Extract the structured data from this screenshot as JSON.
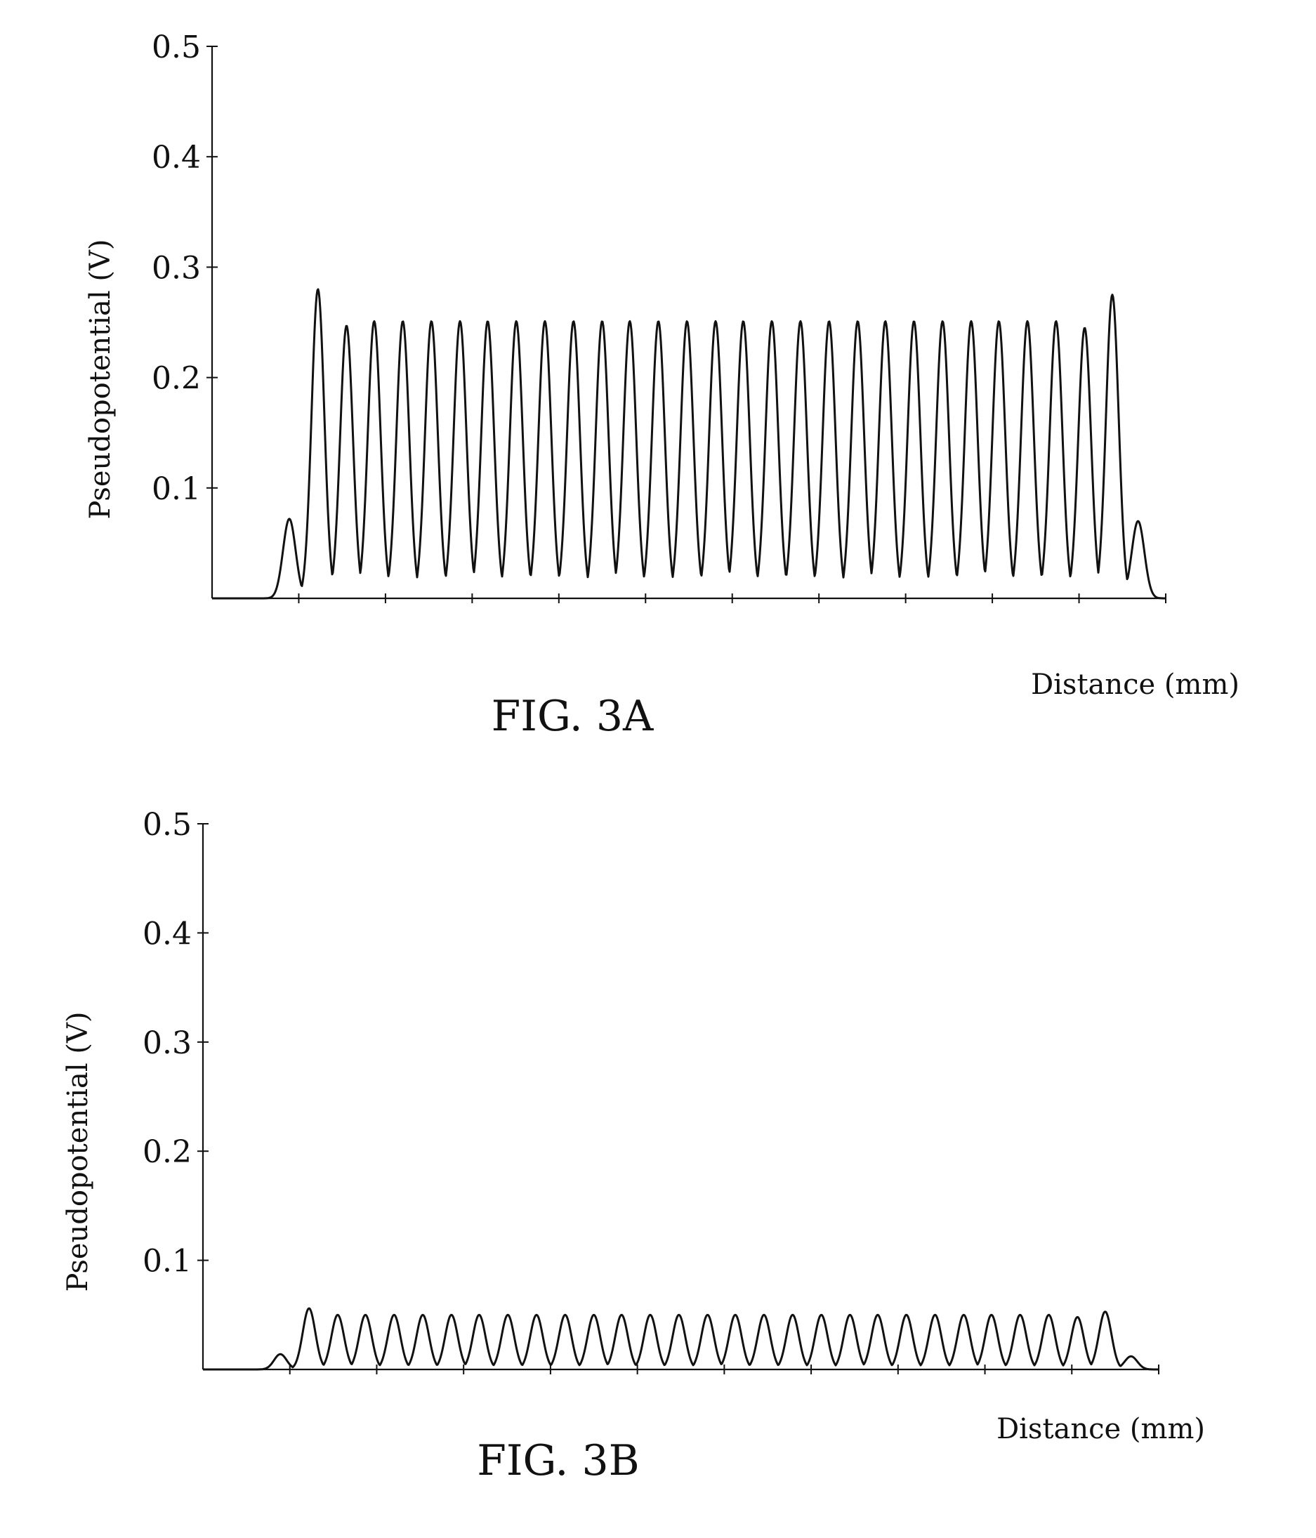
{
  "chart_data": [
    {
      "type": "line",
      "figure_label": "FIG. 3A",
      "title": "",
      "xlabel": "Distance (mm)",
      "ylabel": "Pseudopotential (V)",
      "ylim": [
        0,
        0.5
      ],
      "y_ticks": [
        "0.1",
        "0.2",
        "0.3",
        "0.4",
        "0.5"
      ],
      "x_tick_labels": [],
      "grid": false,
      "peak_count": 31,
      "peaks": [
        {
          "x_fraction": 0.081,
          "y": 0.072
        },
        {
          "x_fraction": 0.111,
          "y": 0.28
        },
        {
          "x_fraction": 0.141,
          "y": 0.247
        },
        {
          "x_fraction": 0.17,
          "y": 0.251
        },
        {
          "x_fraction": 0.2,
          "y": 0.251
        },
        {
          "x_fraction": 0.23,
          "y": 0.251
        },
        {
          "x_fraction": 0.26,
          "y": 0.251
        },
        {
          "x_fraction": 0.289,
          "y": 0.251
        },
        {
          "x_fraction": 0.319,
          "y": 0.251
        },
        {
          "x_fraction": 0.349,
          "y": 0.251
        },
        {
          "x_fraction": 0.379,
          "y": 0.251
        },
        {
          "x_fraction": 0.409,
          "y": 0.251
        },
        {
          "x_fraction": 0.438,
          "y": 0.251
        },
        {
          "x_fraction": 0.468,
          "y": 0.251
        },
        {
          "x_fraction": 0.498,
          "y": 0.251
        },
        {
          "x_fraction": 0.528,
          "y": 0.251
        },
        {
          "x_fraction": 0.557,
          "y": 0.251
        },
        {
          "x_fraction": 0.587,
          "y": 0.251
        },
        {
          "x_fraction": 0.617,
          "y": 0.251
        },
        {
          "x_fraction": 0.647,
          "y": 0.251
        },
        {
          "x_fraction": 0.677,
          "y": 0.251
        },
        {
          "x_fraction": 0.706,
          "y": 0.251
        },
        {
          "x_fraction": 0.736,
          "y": 0.251
        },
        {
          "x_fraction": 0.766,
          "y": 0.251
        },
        {
          "x_fraction": 0.796,
          "y": 0.251
        },
        {
          "x_fraction": 0.825,
          "y": 0.251
        },
        {
          "x_fraction": 0.855,
          "y": 0.251
        },
        {
          "x_fraction": 0.885,
          "y": 0.251
        },
        {
          "x_fraction": 0.915,
          "y": 0.245
        },
        {
          "x_fraction": 0.944,
          "y": 0.275
        },
        {
          "x_fraction": 0.971,
          "y": 0.07
        }
      ]
    },
    {
      "type": "line",
      "figure_label": "FIG. 3B",
      "title": "",
      "xlabel": "Distance (mm)",
      "ylabel": "Pseudopotential (V)",
      "ylim": [
        0,
        0.5
      ],
      "y_ticks": [
        "0.1",
        "0.2",
        "0.3",
        "0.4",
        "0.5"
      ],
      "x_tick_labels": [],
      "grid": false,
      "peak_count": 31,
      "peaks": [
        {
          "x_fraction": 0.081,
          "y": 0.014
        },
        {
          "x_fraction": 0.111,
          "y": 0.056
        },
        {
          "x_fraction": 0.141,
          "y": 0.05
        },
        {
          "x_fraction": 0.17,
          "y": 0.05
        },
        {
          "x_fraction": 0.2,
          "y": 0.05
        },
        {
          "x_fraction": 0.23,
          "y": 0.05
        },
        {
          "x_fraction": 0.26,
          "y": 0.05
        },
        {
          "x_fraction": 0.289,
          "y": 0.05
        },
        {
          "x_fraction": 0.319,
          "y": 0.05
        },
        {
          "x_fraction": 0.349,
          "y": 0.05
        },
        {
          "x_fraction": 0.379,
          "y": 0.05
        },
        {
          "x_fraction": 0.409,
          "y": 0.05
        },
        {
          "x_fraction": 0.438,
          "y": 0.05
        },
        {
          "x_fraction": 0.468,
          "y": 0.05
        },
        {
          "x_fraction": 0.498,
          "y": 0.05
        },
        {
          "x_fraction": 0.528,
          "y": 0.05
        },
        {
          "x_fraction": 0.557,
          "y": 0.05
        },
        {
          "x_fraction": 0.587,
          "y": 0.05
        },
        {
          "x_fraction": 0.617,
          "y": 0.05
        },
        {
          "x_fraction": 0.647,
          "y": 0.05
        },
        {
          "x_fraction": 0.677,
          "y": 0.05
        },
        {
          "x_fraction": 0.706,
          "y": 0.05
        },
        {
          "x_fraction": 0.736,
          "y": 0.05
        },
        {
          "x_fraction": 0.766,
          "y": 0.05
        },
        {
          "x_fraction": 0.796,
          "y": 0.05
        },
        {
          "x_fraction": 0.825,
          "y": 0.05
        },
        {
          "x_fraction": 0.855,
          "y": 0.05
        },
        {
          "x_fraction": 0.885,
          "y": 0.05
        },
        {
          "x_fraction": 0.915,
          "y": 0.048
        },
        {
          "x_fraction": 0.944,
          "y": 0.053
        },
        {
          "x_fraction": 0.971,
          "y": 0.012
        }
      ]
    }
  ]
}
